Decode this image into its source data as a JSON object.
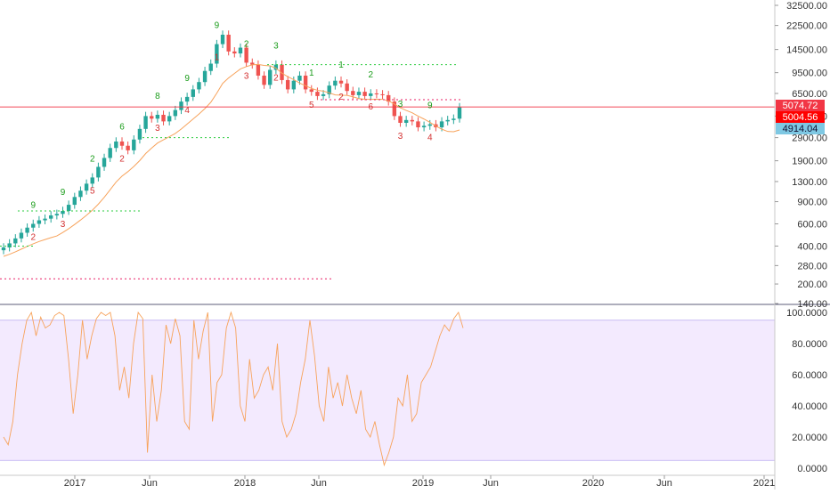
{
  "chart_data": [
    {
      "type": "candlestick",
      "panel": "price",
      "scale": "log",
      "ylim": [
        140,
        32500
      ],
      "y_ticks": [
        "32500.00",
        "22500.00",
        "14500.00",
        "9500.00",
        "6500.00",
        "4300.00",
        "2900.00",
        "1900.00",
        "1300.00",
        "900.00",
        "600.00",
        "400.00",
        "280.00",
        "200.00",
        "140.00"
      ],
      "price_labels": [
        {
          "text": "5074.72",
          "color": "#f23645"
        },
        {
          "text": "5004.56",
          "color": "#ff0000"
        },
        {
          "text": "4914.04",
          "color": "#7ec8e3"
        }
      ],
      "candles_weekly_close": [
        390,
        420,
        460,
        510,
        560,
        600,
        640,
        660,
        700,
        720,
        760,
        850,
        980,
        1100,
        1250,
        1400,
        1700,
        2000,
        2400,
        2700,
        2500,
        2300,
        2800,
        3400,
        4300,
        4100,
        4400,
        3900,
        4300,
        4800,
        5600,
        6100,
        7000,
        8000,
        9800,
        11200,
        16000,
        19000,
        14000,
        13500,
        15000,
        11400,
        11000,
        9000,
        7600,
        10000,
        11000,
        8300,
        7000,
        8200,
        9000,
        7000,
        6700,
        6200,
        6400,
        7500,
        8200,
        7800,
        6800,
        6300,
        6700,
        6200,
        6500,
        6400,
        6300,
        5600,
        4300,
        3800,
        4000,
        3900,
        3500,
        3600,
        3700,
        3500,
        3900,
        4000,
        4100,
        5050
      ],
      "series": [
        {
          "name": "",
          "type": "moving-average",
          "color": "#f7a35c"
        }
      ],
      "levels": [
        {
          "value": 11000,
          "color": "#2ecc40"
        },
        {
          "value": 5800,
          "color": "#e91e63"
        },
        {
          "value": 5074.72,
          "color": "#f23645"
        },
        {
          "value": 2900,
          "color": "#2ecc40"
        },
        {
          "value": 760,
          "color": "#2ecc40"
        },
        {
          "value": 400,
          "color": "#2ecc40"
        },
        {
          "value": 220,
          "color": "#e91e63"
        }
      ],
      "td_labels_green": [
        "9",
        "9",
        "2",
        "6",
        "8",
        "9",
        "9",
        "2",
        "3",
        "1",
        "1",
        "2",
        "3",
        "9"
      ],
      "td_labels_red": [
        "2",
        "3",
        "5",
        "2",
        "3",
        "4",
        "1",
        "3",
        "2",
        "5",
        "2",
        "6",
        "3",
        "4"
      ]
    },
    {
      "type": "line",
      "panel": "oscillator",
      "ylim": [
        0,
        100
      ],
      "y_ticks": [
        "100.0000",
        "80.0000",
        "60.0000",
        "40.0000",
        "20.0000",
        "0.0000"
      ],
      "band": [
        5,
        95
      ],
      "values": [
        20,
        15,
        30,
        60,
        80,
        95,
        100,
        85,
        97,
        90,
        92,
        98,
        100,
        98,
        70,
        35,
        60,
        95,
        70,
        85,
        96,
        100,
        98,
        100,
        85,
        50,
        65,
        45,
        80,
        100,
        96,
        10,
        60,
        30,
        50,
        92,
        80,
        96,
        85,
        30,
        25,
        95,
        70,
        88,
        100,
        30,
        55,
        60,
        90,
        100,
        90,
        40,
        30,
        70,
        45,
        50,
        60,
        65,
        50,
        80,
        30,
        20,
        25,
        35,
        55,
        70,
        95,
        72,
        40,
        30,
        65,
        45,
        55,
        40,
        60,
        45,
        35,
        50,
        25,
        20,
        30,
        15,
        2,
        10,
        20,
        45,
        40,
        60,
        30,
        35,
        55,
        60,
        65,
        75,
        85,
        92,
        88,
        96,
        100,
        90
      ],
      "line_color": "#f7a35c",
      "band_color": "#f3eafe"
    }
  ],
  "x_axis": {
    "labels": [
      "2017",
      "Jun",
      "2018",
      "Jun",
      "2019",
      "Jun",
      "2020",
      "Jun",
      "2021"
    ]
  }
}
